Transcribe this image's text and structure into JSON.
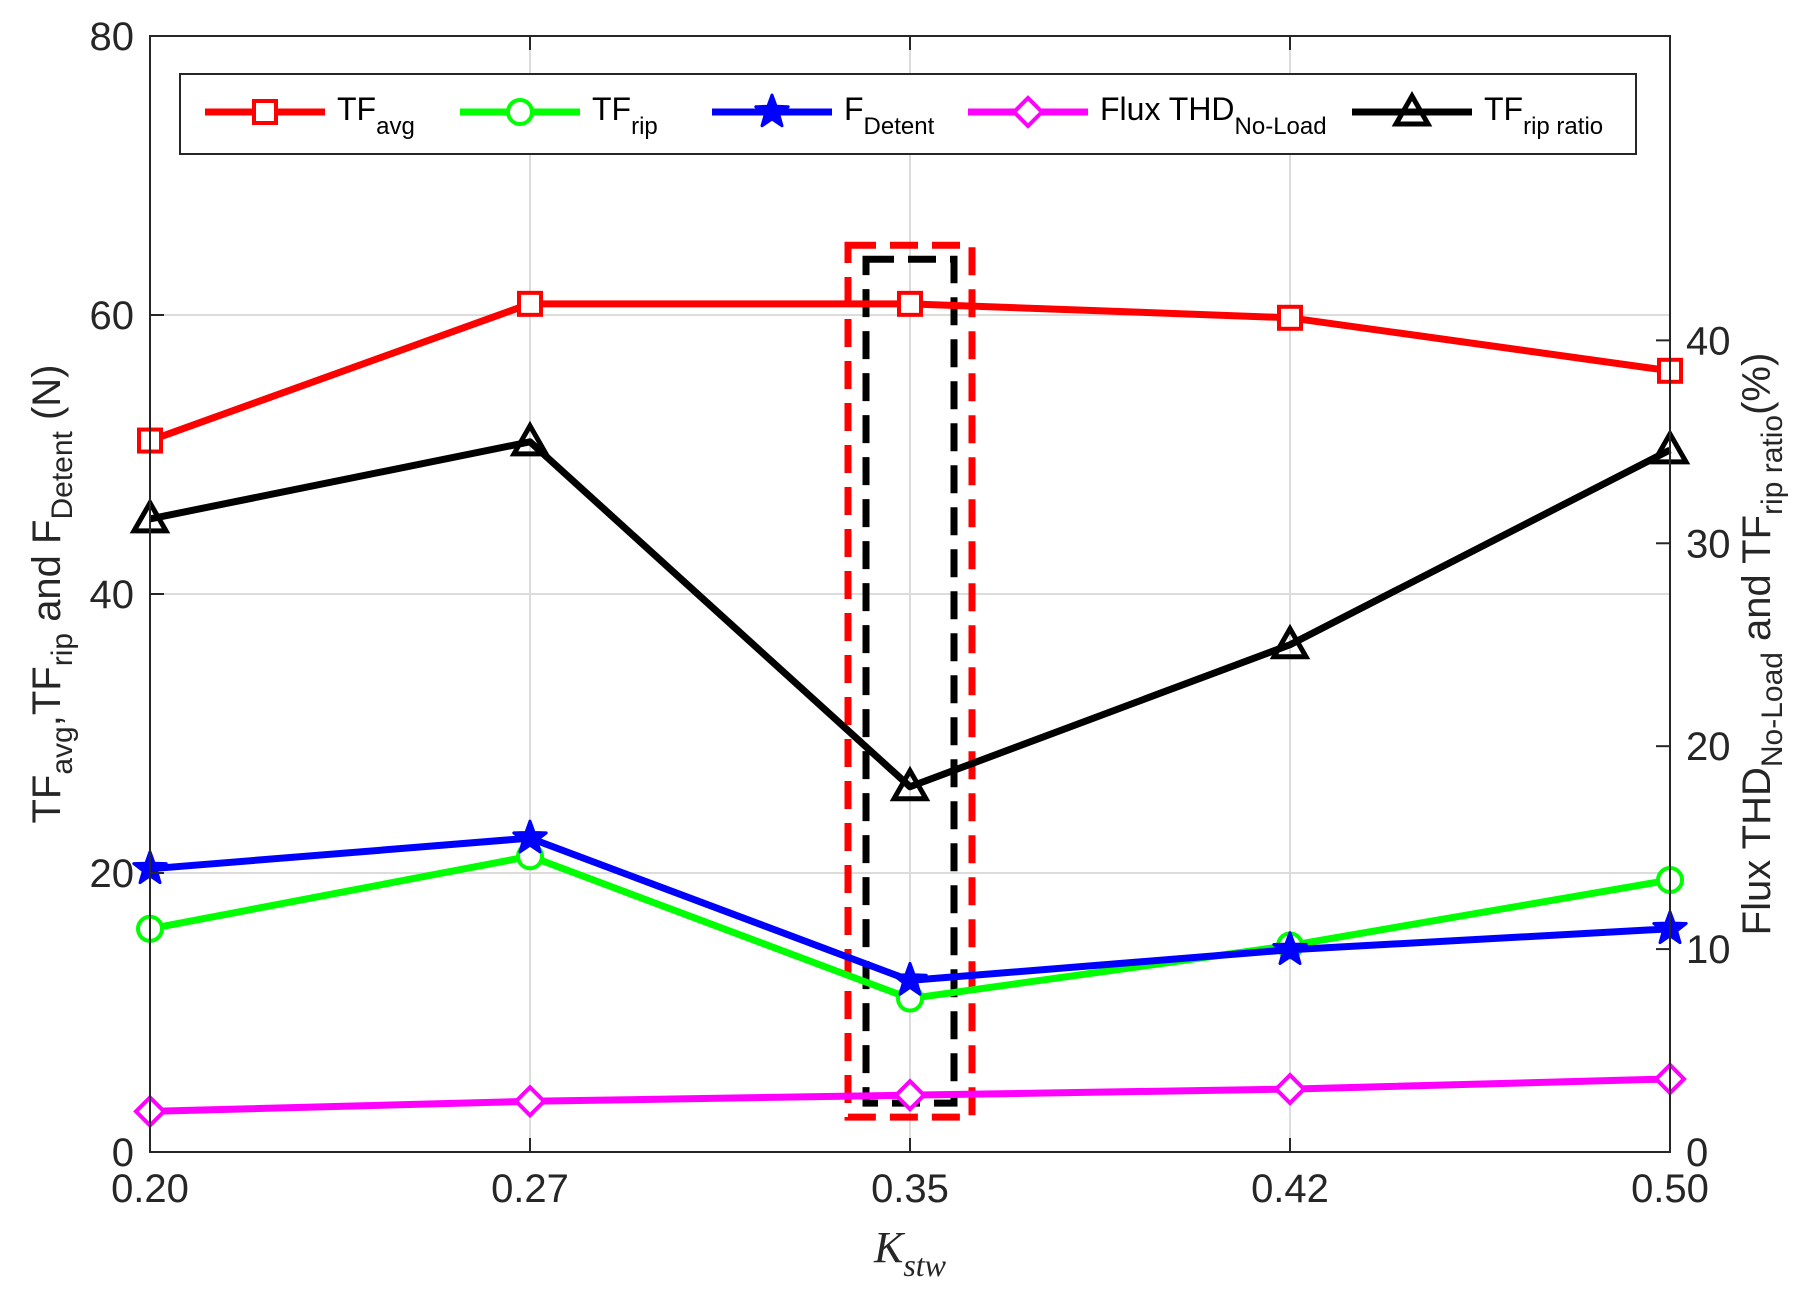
{
  "chart_data": {
    "type": "line",
    "categories": [
      "0.20",
      "0.27",
      "0.35",
      "0.42",
      "0.50"
    ],
    "xlabel": {
      "main": "K",
      "sub": "stw"
    },
    "left_axis": {
      "label_parts": [
        {
          "t": "TF",
          "s": "normal"
        },
        {
          "t": "avg",
          "s": "sub"
        },
        {
          "t": ",TF",
          "s": "normal"
        },
        {
          "t": "rip",
          "s": "sub"
        },
        {
          "t": " and F",
          "s": "normal"
        },
        {
          "t": "Detent",
          "s": "sub"
        },
        {
          "t": " (N)",
          "s": "normal"
        }
      ],
      "ylim": [
        0,
        80
      ],
      "ticks": [
        "0",
        "20",
        "40",
        "60",
        "80"
      ]
    },
    "right_axis": {
      "label_parts": [
        {
          "t": "Flux THD",
          "s": "normal"
        },
        {
          "t": "No-Load",
          "s": "sub"
        },
        {
          "t": "  and TF",
          "s": "normal"
        },
        {
          "t": "rip ratio",
          "s": "sub"
        },
        {
          "t": "(%)",
          "s": "normal"
        }
      ],
      "ylim": [
        0,
        55
      ],
      "ticks": [
        "0",
        "10",
        "20",
        "30",
        "40"
      ]
    },
    "series": [
      {
        "name": "TF_avg",
        "label": {
          "main": "TF",
          "sub": "avg"
        },
        "axis": "left",
        "color": "#ff0000",
        "marker": "square",
        "values": [
          51.0,
          60.8,
          60.8,
          59.8,
          56.0
        ]
      },
      {
        "name": "TF_rip",
        "label": {
          "main": "TF",
          "sub": "rip"
        },
        "axis": "left",
        "color": "#00ff00",
        "marker": "circle",
        "values": [
          16.0,
          21.2,
          11.0,
          14.8,
          19.5
        ]
      },
      {
        "name": "F_Detent",
        "label": {
          "main": "F",
          "sub": "Detent"
        },
        "axis": "left",
        "color": "#0000ff",
        "marker": "star",
        "values": [
          20.3,
          22.5,
          12.3,
          14.5,
          16.0
        ]
      },
      {
        "name": "Flux THD_No-Load",
        "label": {
          "main": "Flux THD",
          "sub": "No-Load"
        },
        "axis": "right",
        "color": "#ff00ff",
        "marker": "diamond",
        "values": [
          2.0,
          2.5,
          2.8,
          3.1,
          3.6
        ]
      },
      {
        "name": "TF_rip ratio",
        "label": {
          "main": "TF",
          "sub": "rip ratio"
        },
        "axis": "right",
        "color": "#000000",
        "marker": "triangle",
        "values": [
          31.2,
          35.0,
          18.0,
          25.0,
          34.6
        ]
      }
    ],
    "grid": true,
    "legend_position": "top",
    "annotations": [
      {
        "type": "dashed-box",
        "color": "#ff0000",
        "around": "0.35"
      },
      {
        "type": "dashed-box",
        "color": "#000000",
        "around": "0.35"
      }
    ]
  }
}
